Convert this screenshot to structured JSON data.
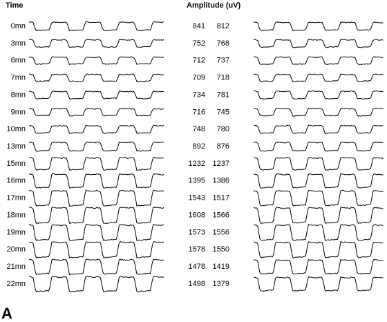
{
  "header": {
    "time": "Time",
    "amplitude": "Amplitude (uV)"
  },
  "rows": [
    [
      "0mn",
      841,
      812
    ],
    [
      "3mn",
      752,
      768
    ],
    [
      "6mn",
      712,
      737
    ],
    [
      "7mn",
      709,
      718
    ],
    [
      "8mn",
      734,
      781
    ],
    [
      "9mn",
      716,
      745
    ],
    [
      "10mn",
      748,
      780
    ],
    [
      "13mn",
      892,
      876
    ],
    [
      "15mn",
      1232,
      1237
    ],
    [
      "16mn",
      1395,
      1386
    ],
    [
      "17mn",
      1543,
      1517
    ],
    [
      "18mn",
      1608,
      1566
    ],
    [
      "19mn",
      1573,
      1556
    ],
    [
      "20mn",
      1578,
      1550
    ],
    [
      "21mn",
      1478,
      1419
    ],
    [
      "22mn",
      1498,
      1379
    ]
  ],
  "panel_label": "A"
}
